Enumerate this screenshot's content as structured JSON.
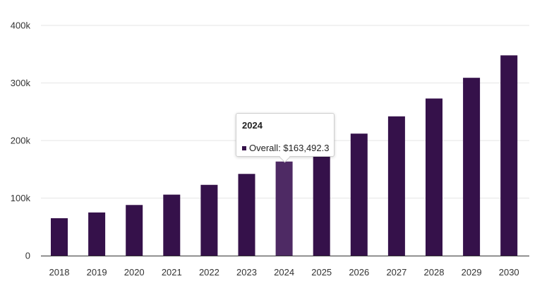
{
  "colors": {
    "bar": "#35114a",
    "bar_highlight": "#4e2a64",
    "grid": "#e6e6e6",
    "axis": "#333333"
  },
  "chart_data": {
    "type": "bar",
    "categories": [
      "2018",
      "2019",
      "2020",
      "2021",
      "2022",
      "2023",
      "2024",
      "2025",
      "2026",
      "2027",
      "2028",
      "2029",
      "2030"
    ],
    "series": [
      {
        "name": "Overall",
        "values": [
          65000,
          75000,
          88000,
          106000,
          123000,
          142000,
          163492.3,
          186000,
          212000,
          242000,
          273000,
          309000,
          348000
        ]
      }
    ],
    "title": "",
    "xlabel": "",
    "ylabel": "",
    "ylim": [
      0,
      400000
    ],
    "yticks": [
      0,
      100000,
      200000,
      300000,
      400000
    ],
    "ytick_labels": [
      "0",
      "100k",
      "200k",
      "300k",
      "400k"
    ],
    "grid": true,
    "legend": "none",
    "highlighted_category": "2024"
  },
  "tooltip": {
    "title": "2024",
    "series_label": "Overall",
    "value_text": "$163,492.3"
  }
}
